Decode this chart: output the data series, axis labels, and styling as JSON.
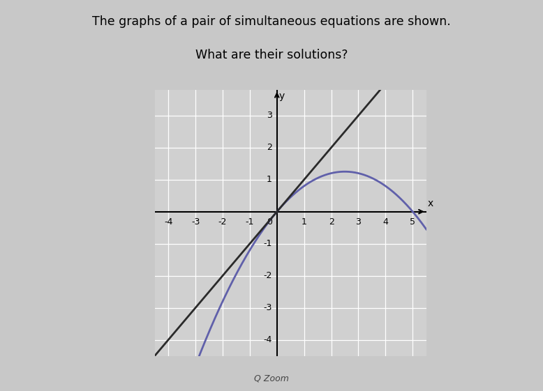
{
  "title_line1": "The graphs of a pair of simultaneous equations are shown.",
  "title_line2": "What are their solutions?",
  "xlabel": "x",
  "ylabel": "y",
  "xlim": [
    -4.5,
    5.5
  ],
  "ylim": [
    -4.5,
    3.8
  ],
  "xticks": [
    -4,
    -3,
    -2,
    -1,
    1,
    2,
    3,
    4,
    5
  ],
  "yticks": [
    -4,
    -3,
    -2,
    -1,
    1,
    2,
    3
  ],
  "line_color": "#2a2a2a",
  "parabola_color": "#6060aa",
  "background_color": "#c8c8c8",
  "plot_bg_color": "#d0d0d0",
  "grid_color": "#ffffff",
  "line_slope": 1,
  "line_intercept": 0,
  "parabola_a": -0.2,
  "parabola_b": 1.0,
  "parabola_c": 0.0,
  "zoom_label": "Q Zoom"
}
